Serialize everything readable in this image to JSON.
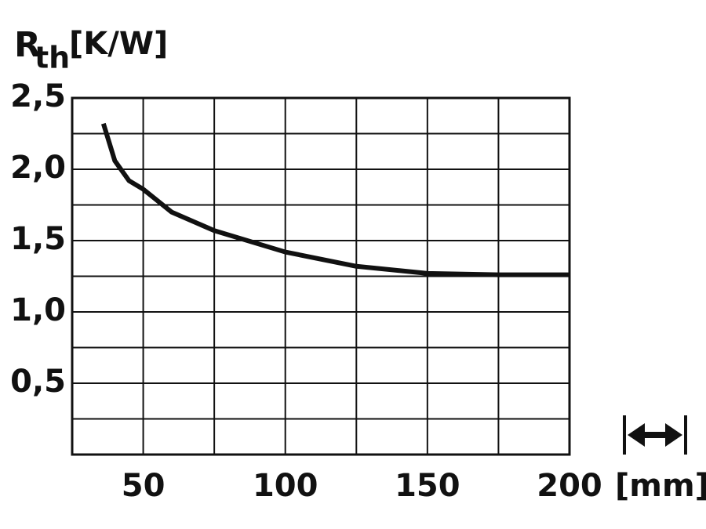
{
  "chart_data": {
    "type": "line",
    "y_label": {
      "symbol": "R",
      "subscript": "th",
      "unit": "[K/W]"
    },
    "x_unit": "[mm]",
    "x": [
      36,
      40,
      45,
      50,
      60,
      75,
      100,
      125,
      150,
      175,
      200
    ],
    "series": [
      {
        "color": "#111111",
        "values": [
          2.32,
          2.06,
          1.92,
          1.86,
          1.7,
          1.57,
          1.42,
          1.32,
          1.27,
          1.26,
          1.26
        ]
      }
    ],
    "xlim": [
      25,
      200
    ],
    "ylim": [
      0,
      2.5
    ],
    "xticks": [
      50,
      100,
      150,
      200
    ],
    "x_minor_ticks": [
      25,
      75,
      125,
      175
    ],
    "yticks": [
      {
        "value": 0.5,
        "label": "0,5"
      },
      {
        "value": 1.0,
        "label": "1,0"
      },
      {
        "value": 1.5,
        "label": "1,5"
      },
      {
        "value": 2.0,
        "label": "2,0"
      },
      {
        "value": 2.5,
        "label": "2,5"
      }
    ],
    "y_minor_ticks": [
      0.25,
      0.75,
      1.25,
      1.75,
      2.25
    ],
    "grid": true
  }
}
